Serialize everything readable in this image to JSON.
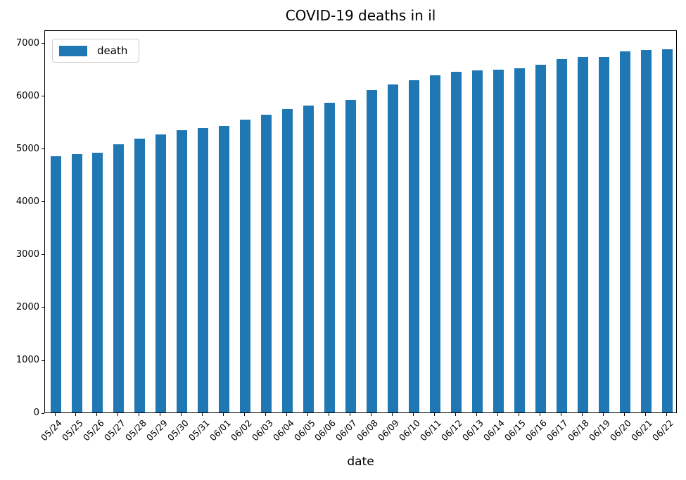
{
  "chart_data": {
    "type": "bar",
    "title": "COVID-19 deaths in il",
    "xlabel": "date",
    "ylabel": "",
    "categories": [
      "05/24",
      "05/25",
      "05/26",
      "05/27",
      "05/28",
      "05/29",
      "05/30",
      "05/31",
      "06/01",
      "06/02",
      "06/03",
      "06/04",
      "06/05",
      "06/06",
      "06/07",
      "06/08",
      "06/09",
      "06/10",
      "06/11",
      "06/12",
      "06/13",
      "06/14",
      "06/15",
      "06/16",
      "06/17",
      "06/18",
      "06/19",
      "06/20",
      "06/21",
      "06/22"
    ],
    "series": [
      {
        "name": "death",
        "values": [
          4856,
          4890,
          4923,
          5083,
          5186,
          5270,
          5340,
          5390,
          5425,
          5545,
          5640,
          5750,
          5805,
          5870,
          5915,
          6105,
          6205,
          6290,
          6380,
          6450,
          6480,
          6495,
          6520,
          6590,
          6690,
          6730,
          6735,
          6840,
          6865,
          6880
        ]
      }
    ],
    "bar_color": "#1f77b4",
    "ylim": [
      0,
      7250
    ],
    "yticks": [
      0,
      1000,
      2000,
      3000,
      4000,
      5000,
      6000,
      7000
    ],
    "legend_position": "upper left",
    "grid": false,
    "background_color": "#ffffff",
    "spine_color": "#000000"
  }
}
